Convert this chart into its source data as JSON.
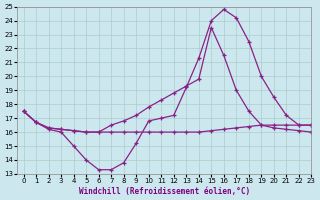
{
  "xlabel": "Windchill (Refroidissement éolien,°C)",
  "xlim": [
    -0.5,
    23
  ],
  "ylim": [
    13,
    25
  ],
  "yticks": [
    13,
    14,
    15,
    16,
    17,
    18,
    19,
    20,
    21,
    22,
    23,
    24,
    25
  ],
  "xticks": [
    0,
    1,
    2,
    3,
    4,
    5,
    6,
    7,
    8,
    9,
    10,
    11,
    12,
    13,
    14,
    15,
    16,
    17,
    18,
    19,
    20,
    21,
    22,
    23
  ],
  "background_color": "#cce8ee",
  "grid_color": "#aacccc",
  "line_color": "#882288",
  "line1_x": [
    0,
    1,
    2,
    3,
    4,
    5,
    6,
    7,
    8,
    9,
    10,
    11,
    12,
    13,
    14,
    15,
    16,
    17,
    18,
    19,
    20,
    21,
    22,
    23
  ],
  "line1_y": [
    17.5,
    16.7,
    16.2,
    16.0,
    15.0,
    14.0,
    13.3,
    13.3,
    13.8,
    15.2,
    16.8,
    17.0,
    17.2,
    19.2,
    21.3,
    24.0,
    24.8,
    24.2,
    22.5,
    20.0,
    18.5,
    17.2,
    16.5,
    16.5
  ],
  "line2_x": [
    0,
    1,
    2,
    3,
    4,
    5,
    6,
    7,
    8,
    9,
    10,
    11,
    12,
    13,
    14,
    15,
    16,
    17,
    18,
    19,
    20,
    21,
    22,
    23
  ],
  "line2_y": [
    17.5,
    16.7,
    16.3,
    16.2,
    16.1,
    16.0,
    16.0,
    16.5,
    16.8,
    17.2,
    17.8,
    18.3,
    18.8,
    19.3,
    19.8,
    23.5,
    21.5,
    19.0,
    17.5,
    16.5,
    16.3,
    16.2,
    16.1,
    16.0
  ],
  "line3_x": [
    0,
    1,
    2,
    3,
    4,
    5,
    6,
    7,
    8,
    9,
    10,
    11,
    12,
    13,
    14,
    15,
    16,
    17,
    18,
    19,
    20,
    21,
    22,
    23
  ],
  "line3_y": [
    17.5,
    16.7,
    16.3,
    16.2,
    16.1,
    16.0,
    16.0,
    16.0,
    16.0,
    16.0,
    16.0,
    16.0,
    16.0,
    16.0,
    16.0,
    16.1,
    16.2,
    16.3,
    16.4,
    16.5,
    16.5,
    16.5,
    16.5,
    16.5
  ]
}
